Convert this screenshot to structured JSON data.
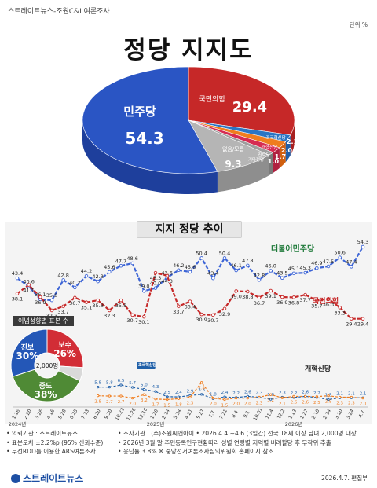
{
  "header": {
    "source": "스트레이트뉴스-조원C&I 여론조사",
    "unit": "단위 %"
  },
  "title": "정당 지지도",
  "pie": {
    "slices": [
      {
        "label": "민주당",
        "value": "54.3",
        "color": "#1e3f9c",
        "top": "#2a55c4"
      },
      {
        "label": "국민의힘",
        "value": "29.4",
        "color": "#a82020",
        "top": "#c62828"
      },
      {
        "label": "조국혁신당",
        "value": "2.1",
        "color": "#1f5fa8",
        "top": "#2a75c4"
      },
      {
        "label": "개혁신당",
        "value": "2.0",
        "color": "#d06010",
        "top": "#ef7d1f"
      },
      {
        "label": "진보당",
        "value": "1.7",
        "color": "#b02040",
        "top": "#d62c52"
      },
      {
        "label": "기타정당",
        "value": "1.0",
        "color": "#7a7a7a",
        "top": "#9e9e9e"
      },
      {
        "label": "없음/모름",
        "value": "9.3",
        "color": "#8e8e8e",
        "top": "#b5b5b5"
      }
    ]
  },
  "trend_title": "지지 정당 추이",
  "chart_data": [
    {
      "type": "line",
      "title": "지지 정당 추이",
      "x": [
        "1.16",
        "2.20",
        "3.26",
        "4.16",
        "5.28",
        "6.25",
        "7.23",
        "8.20",
        "9.30",
        "10.22",
        "11.26",
        "12.16",
        "1.20",
        "2.24",
        "3.24",
        "4.21",
        "5.27",
        "7.7",
        "7.21",
        "8.4",
        "9.1",
        "10.01",
        "11.4",
        "12.2",
        "1.13",
        "1.27",
        "2.10",
        "2.24",
        "3.10",
        "3.24",
        "4.7"
      ],
      "x_period_labels": [
        "2024년",
        "2025년",
        "2026년"
      ],
      "series": [
        {
          "name": "더불어민주당",
          "color": "#3c64d6",
          "values": [
            43.4,
            40.6,
            36.1,
            35.8,
            42.8,
            40.2,
            44.2,
            42.3,
            45.6,
            47.7,
            48.6,
            39.0,
            40.0,
            43.6,
            46.2,
            45.6,
            50.4,
            43.4,
            50.4,
            46.1,
            47.8,
            42.8,
            46.0,
            43.5,
            45.1,
            45.3,
            46.9,
            47.5,
            50.6,
            47.4,
            54.3
          ]
        },
        {
          "name": "국민의힘",
          "color": "#c62828",
          "values": [
            38.1,
            41.1,
            36.9,
            32.3,
            33.7,
            36.7,
            35.1,
            35.8,
            32.3,
            35.8,
            30.7,
            30.1,
            45.3,
            44.3,
            33.7,
            35.4,
            30.9,
            30.7,
            32.9,
            39.0,
            38.8,
            36.7,
            39.1,
            36.9,
            36.8,
            37.7,
            35.7,
            36.3,
            33.3,
            29.4,
            29.4
          ]
        },
        {
          "name": "조국혁신당",
          "color": "#1f5fa8",
          "values": [
            null,
            null,
            null,
            null,
            null,
            null,
            null,
            5.8,
            5.8,
            6.5,
            5.7,
            5.0,
            4.3,
            2.5,
            2.4,
            2.9,
            3.3,
            1.8,
            2.4,
            2.2,
            2.6,
            2.3,
            1.6,
            2.3,
            2.2,
            2.6,
            2.2,
            1.5,
            2.1,
            2.1,
            2.1
          ]
        },
        {
          "name": "개혁신당",
          "color": "#ef7d1f",
          "values": [
            null,
            null,
            null,
            null,
            null,
            null,
            null,
            2.8,
            2.7,
            2.7,
            2.0,
            3.2,
            1.7,
            1.5,
            1.8,
            2.3,
            7.4,
            2.0,
            1.5,
            2.0,
            2.0,
            2.3,
            3.2,
            2.1,
            2.6,
            2.6,
            2.5,
            2.8,
            2.3,
            2.3,
            2.0
          ]
        }
      ],
      "ylim": [
        0,
        57
      ],
      "grid": false,
      "legend": "inline labels"
    },
    {
      "type": "pie",
      "title": "이념성향별 표본 수",
      "categories": [
        "진보",
        "보수",
        "중도"
      ],
      "values": [
        30,
        26,
        38
      ],
      "center_label": "2,000명"
    }
  ],
  "pie_donut": {
    "slices": [
      {
        "label": "진보",
        "value": "30%",
        "color": "#2457b7"
      },
      {
        "label": "보수",
        "value": "26%",
        "color": "#d22d36"
      },
      {
        "label": "중도",
        "value": "38%",
        "color": "#4f8a35"
      },
      {
        "label": "",
        "value": "",
        "color": "#d9d9d9"
      }
    ]
  },
  "trend_labels": {
    "minjoo": "더불어민주당",
    "ppp": "국민의힘",
    "cho": "조국혁신당",
    "gaehyuk": "개혁신당"
  },
  "footer": {
    "left": [
      "• 의뢰기관 : 스트레이트뉴스",
      "• 표본오차 ±2.2%p (95% 신뢰수준)",
      "• 무선RDD를 이용한 ARS여론조사"
    ],
    "right": [
      "• 조사기관 : (주)조원씨앤아이   • 2026.4.4.~4.6.(3일간) 전국 18세 이상 남녀 2,000명 대상",
      "• 2026년 3월 말 주민등록인구현황따라 성별 연령별 지역별 비례할당 후 무작위 추출",
      "• 응답률 3.8%                            ※ 중앙선거여론조사심의위원회 홈페이지 참조"
    ],
    "brand": "스트레이트뉴스",
    "date": "2026.4.7.  편집부"
  }
}
